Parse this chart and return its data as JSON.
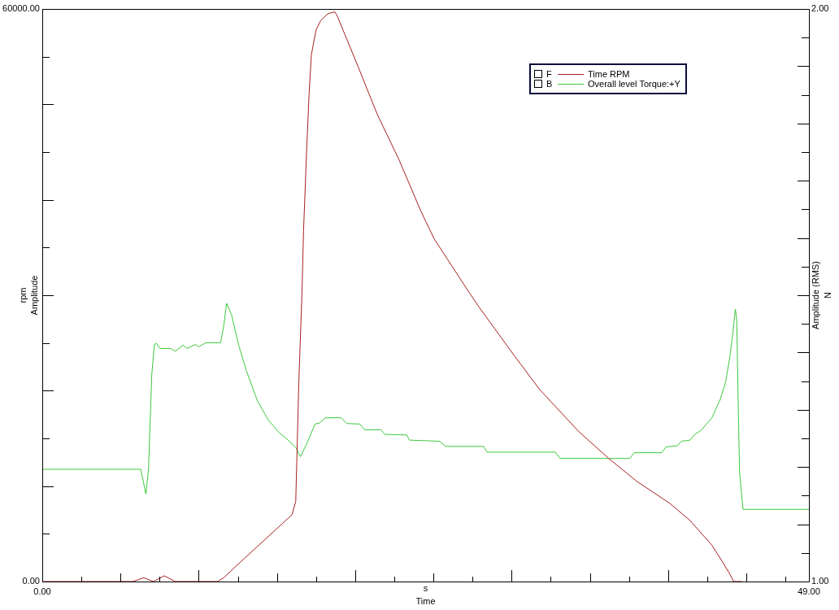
{
  "chart_data": {
    "type": "line",
    "xlabel": "s\nTime",
    "ylabel": "rpm\nAmplitude",
    "y2label": "Amplitude (RMS)\nN",
    "annotations": [
      "F",
      "B"
    ],
    "xlim": [
      0,
      49
    ],
    "xticks": [
      {
        "value": 0,
        "label": "0.00"
      },
      {
        "value": 2.5,
        "label": null
      },
      {
        "value": 5,
        "label": null
      },
      {
        "value": 7.5,
        "label": null
      },
      {
        "value": 10,
        "label": null
      },
      {
        "value": 12.5,
        "label": null
      },
      {
        "value": 15,
        "label": null
      },
      {
        "value": 17.5,
        "label": null
      },
      {
        "value": 20,
        "label": null
      },
      {
        "value": 22.5,
        "label": null
      },
      {
        "value": 25,
        "label": null
      },
      {
        "value": 27.5,
        "label": null
      },
      {
        "value": 30,
        "label": null
      },
      {
        "value": 32.5,
        "label": null
      },
      {
        "value": 35,
        "label": null
      },
      {
        "value": 37.5,
        "label": null
      },
      {
        "value": 40,
        "label": null
      },
      {
        "value": 42.5,
        "label": null
      },
      {
        "value": 45,
        "label": null
      },
      {
        "value": 47.5,
        "label": null
      },
      {
        "value": 49,
        "label": "49.00"
      }
    ],
    "ylim": [
      0,
      60000
    ],
    "yticks": [
      {
        "value": 0,
        "label": "0.00"
      },
      {
        "value": 5000,
        "label": null
      },
      {
        "value": 10000,
        "label": null
      },
      {
        "value": 15000,
        "label": null
      },
      {
        "value": 20000,
        "label": null
      },
      {
        "value": 25000,
        "label": null
      },
      {
        "value": 30000,
        "label": null
      },
      {
        "value": 35000,
        "label": null
      },
      {
        "value": 40000,
        "label": null
      },
      {
        "value": 45000,
        "label": null
      },
      {
        "value": 50000,
        "label": null
      },
      {
        "value": 55000,
        "label": null
      },
      {
        "value": 60000,
        "label": "60000.00"
      }
    ],
    "y2lim": [
      1,
      2
    ],
    "y2ticks": [
      {
        "value": 1,
        "label": "1.00"
      },
      {
        "value": 1.05,
        "label": null
      },
      {
        "value": 1.1,
        "label": null
      },
      {
        "value": 1.15,
        "label": null
      },
      {
        "value": 1.2,
        "label": null
      },
      {
        "value": 1.25,
        "label": null
      },
      {
        "value": 1.3,
        "label": null
      },
      {
        "value": 1.35,
        "label": null
      },
      {
        "value": 1.4,
        "label": null
      },
      {
        "value": 1.45,
        "label": null
      },
      {
        "value": 1.5,
        "label": null
      },
      {
        "value": 1.55,
        "label": null
      },
      {
        "value": 1.6,
        "label": null
      },
      {
        "value": 1.65,
        "label": null
      },
      {
        "value": 1.7,
        "label": null
      },
      {
        "value": 1.75,
        "label": null
      },
      {
        "value": 1.8,
        "label": null
      },
      {
        "value": 1.85,
        "label": null
      },
      {
        "value": 1.9,
        "label": null
      },
      {
        "value": 1.95,
        "label": null
      },
      {
        "value": 2,
        "label": "2.00"
      }
    ],
    "legend": "top right",
    "marker": "none",
    "line_style": "solid",
    "series": [
      {
        "name": "Time RPM",
        "color": "#a82020",
        "x": [
          0,
          5.8,
          6.5,
          7.1,
          7.8,
          8.5,
          11.2,
          11.6,
          12.9,
          14.5,
          15.96,
          16.2,
          16.4,
          16.6,
          16.7,
          16.9,
          17.05,
          17.2,
          17.5,
          17.8,
          18.25,
          18.7,
          18.87,
          20.2,
          21.4,
          22.8,
          24.2,
          25.05,
          27.2,
          27.9,
          30.2,
          31.8,
          34.3,
          36.2,
          38.0,
          40.1,
          41.4,
          42.8,
          43.5,
          43.9,
          44.2,
          44.7
        ],
        "values": [
          0,
          0,
          400,
          0,
          600,
          0,
          0,
          400,
          2400,
          4800,
          7000,
          8400,
          21000,
          30300,
          36800,
          45300,
          51000,
          55200,
          57800,
          58800,
          59500,
          59700,
          59200,
          53900,
          49000,
          44200,
          38800,
          35900,
          30500,
          28800,
          23600,
          20100,
          15700,
          12900,
          10500,
          8200,
          6400,
          3800,
          2000,
          900,
          0,
          0
        ]
      },
      {
        "name": "Overall level Torque:+Y",
        "color": "#3cc83c",
        "axis": "y2",
        "x": [
          0,
          6.3,
          6.62,
          6.79,
          7.0,
          7.17,
          7.31,
          7.52,
          8.2,
          8.5,
          9.0,
          9.25,
          9.8,
          10.0,
          10.45,
          11.4,
          11.6,
          11.78,
          12.1,
          12.54,
          13.06,
          13.76,
          14.45,
          15.14,
          15.84,
          16.2,
          16.5,
          16.96,
          17.43,
          17.74,
          18.09,
          19.1,
          19.47,
          20.3,
          20.6,
          21.64,
          21.9,
          23.3,
          23.46,
          25.4,
          25.77,
          28.2,
          28.43,
          32.8,
          33.08,
          37.56,
          37.83,
          39.6,
          39.86,
          40.58,
          40.85,
          41.4,
          41.7,
          42.1,
          42.8,
          43.33,
          43.68,
          43.95,
          44.13,
          44.3,
          44.39,
          44.48,
          44.57,
          44.79,
          49
        ],
        "values": [
          1.196,
          1.196,
          1.153,
          1.196,
          1.362,
          1.414,
          1.416,
          1.407,
          1.407,
          1.402,
          1.413,
          1.407,
          1.414,
          1.41,
          1.417,
          1.417,
          1.447,
          1.486,
          1.466,
          1.414,
          1.367,
          1.315,
          1.282,
          1.26,
          1.244,
          1.234,
          1.218,
          1.244,
          1.275,
          1.277,
          1.286,
          1.286,
          1.276,
          1.275,
          1.265,
          1.265,
          1.257,
          1.256,
          1.247,
          1.245,
          1.236,
          1.236,
          1.226,
          1.226,
          1.215,
          1.215,
          1.225,
          1.225,
          1.235,
          1.237,
          1.245,
          1.247,
          1.257,
          1.264,
          1.286,
          1.318,
          1.349,
          1.393,
          1.432,
          1.476,
          1.456,
          1.31,
          1.189,
          1.126,
          1.126
        ]
      }
    ]
  }
}
